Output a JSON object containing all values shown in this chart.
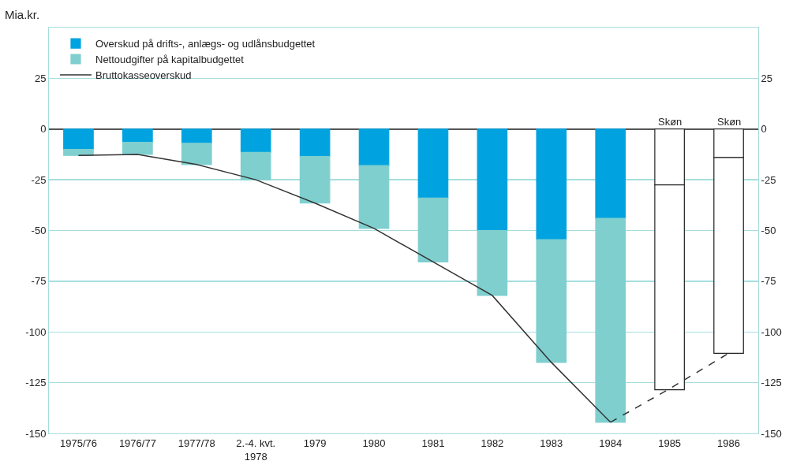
{
  "chart_data": {
    "type": "bar",
    "ylabel": "Mia.kr.",
    "categories": [
      "1975/76",
      "1976/77",
      "1977/78",
      "2.-4. kvt.\n1978",
      "1979",
      "1980",
      "1981",
      "1982",
      "1983",
      "1984",
      "1985",
      "1986"
    ],
    "stacked": true,
    "series": [
      {
        "name": "Overskud på drifts-, anlægs- og udlånsbudgettet",
        "color": "#00a3e0",
        "colors": [
          "#00a3e0",
          "#00a3e0",
          "#00a3e0",
          "#00a3e0",
          "#00a3e0",
          "#00a3e0",
          "#00a3e0",
          "#00a3e0",
          "#00a3e0",
          "#00a3e0",
          "#ffffff",
          "#ffffff"
        ],
        "values": [
          -10,
          -6.5,
          -7,
          -11.5,
          -13.5,
          -18,
          -34,
          -50,
          -54.5,
          -44,
          -27.5,
          -14
        ]
      },
      {
        "name": "Nettoudgifter på kapitalbudgettet",
        "color": "#7fcfcf",
        "colors": [
          "#7fcfcf",
          "#7fcfcf",
          "#7fcfcf",
          "#7fcfcf",
          "#7fcfcf",
          "#7fcfcf",
          "#7fcfcf",
          "#7fcfcf",
          "#7fcfcf",
          "#7fcfcf",
          "#ffffff",
          "#ffffff"
        ],
        "values": [
          -3,
          -6,
          -10.5,
          -13.5,
          -23,
          -31,
          -31.5,
          -32,
          -60.5,
          -100.5,
          -101,
          -96.5
        ]
      },
      {
        "name": "Bruttokasseoverskud",
        "type": "line",
        "color": "#333333",
        "line_style": "solid",
        "values": [
          -13,
          -12.5,
          -17.5,
          -25,
          -36.5,
          -49,
          -65.5,
          -82,
          -115,
          -144.5,
          null,
          null
        ]
      },
      {
        "type": "line",
        "color": "#333333",
        "line_style": "dashed",
        "values": [
          null,
          null,
          null,
          null,
          null,
          null,
          null,
          null,
          null,
          -144.5,
          -128,
          -110.5
        ]
      }
    ],
    "annotations": [
      {
        "text": "Skøn",
        "x": "1985",
        "y": 0
      },
      {
        "text": "Skøn",
        "x": "1986",
        "y": 0
      }
    ],
    "ylim": [
      -150,
      50
    ],
    "yticks": [
      -150,
      -125,
      -100,
      -75,
      -50,
      -25,
      0,
      25
    ],
    "y2lim": [
      -150,
      50
    ],
    "y2ticks": [
      -150,
      -125,
      -100,
      -75,
      -50,
      -25,
      0,
      25
    ],
    "grid": "y",
    "legend": "top left",
    "marker": "none"
  }
}
